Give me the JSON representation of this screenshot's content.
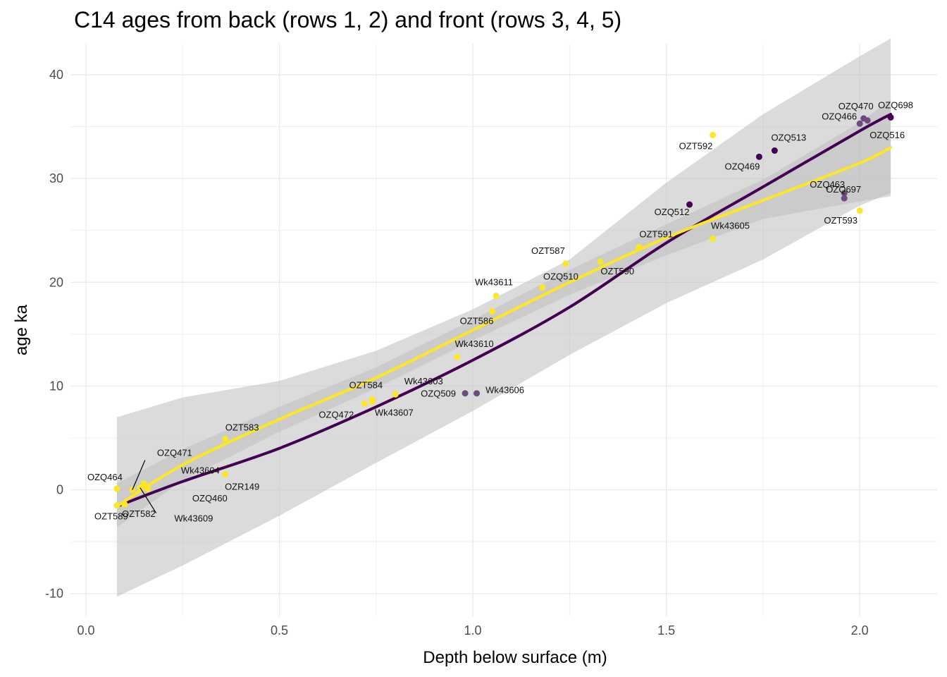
{
  "chart_data": {
    "type": "scatter",
    "title": "C14 ages from back (rows 1, 2) and front (rows 3, 4, 5)",
    "xlabel": "Depth below surface (m)",
    "ylabel": "age ka",
    "xlim": [
      -0.04,
      2.2
    ],
    "ylim": [
      -12.2,
      43
    ],
    "x_ticks": [
      0.0,
      0.5,
      1.0,
      1.5,
      2.0
    ],
    "x_tick_labels": [
      "0.0",
      "0.5",
      "1.0",
      "1.5",
      "2.0"
    ],
    "y_ticks": [
      -10,
      0,
      10,
      20,
      30,
      40
    ],
    "y_tick_labels": [
      "-10",
      "0",
      "10",
      "20",
      "30",
      "40"
    ],
    "grid": true,
    "legend": "none",
    "colors": {
      "row1": "#440154",
      "row2": "#5c3566",
      "row3": "#6f4a7f",
      "front": "#fde725",
      "ribbon": "#bdbdbd",
      "grid": "#ebebeb"
    },
    "points": [
      {
        "x": 0.08,
        "y": 0.1,
        "label": "OZQ464",
        "color": "front"
      },
      {
        "x": 0.12,
        "y": 0.0,
        "label": "OZQ471",
        "color": "front"
      },
      {
        "x": 0.1,
        "y": -1.4,
        "label": "OZT582",
        "color": "front"
      },
      {
        "x": 0.08,
        "y": -1.5,
        "label": "OZT589",
        "color": "front"
      },
      {
        "x": 0.15,
        "y": 0.6,
        "label": "Wk43604",
        "color": "front"
      },
      {
        "x": 0.16,
        "y": 0.1,
        "label": "OZQ460",
        "color": "front"
      },
      {
        "x": 0.14,
        "y": 0.2,
        "label": "Wk43609",
        "color": "front"
      },
      {
        "x": 0.36,
        "y": 1.5,
        "label": "OZR149",
        "color": "front"
      },
      {
        "x": 0.36,
        "y": 4.9,
        "label": "OZT583",
        "color": "front"
      },
      {
        "x": 0.72,
        "y": 8.3,
        "label": "OZQ472",
        "color": "front"
      },
      {
        "x": 0.74,
        "y": 8.7,
        "label": "OZT584",
        "color": "front"
      },
      {
        "x": 0.8,
        "y": 9.2,
        "label": "Wk43603",
        "color": "front"
      },
      {
        "x": 0.74,
        "y": 8.5,
        "label": "Wk43607",
        "color": "front"
      },
      {
        "x": 0.98,
        "y": 9.3,
        "label": "OZQ509",
        "color": "row3"
      },
      {
        "x": 1.01,
        "y": 9.3,
        "label": "Wk43606",
        "color": "row3"
      },
      {
        "x": 0.96,
        "y": 12.8,
        "label": "Wk43610",
        "color": "front"
      },
      {
        "x": 1.05,
        "y": 17.2,
        "label": "OZT586",
        "color": "front"
      },
      {
        "x": 1.06,
        "y": 18.7,
        "label": "Wk43611",
        "color": "front"
      },
      {
        "x": 1.18,
        "y": 19.5,
        "label": "OZQ510",
        "color": "front"
      },
      {
        "x": 1.24,
        "y": 21.8,
        "label": "OZT587",
        "color": "front"
      },
      {
        "x": 1.33,
        "y": 22.0,
        "label": "OZT590",
        "color": "front"
      },
      {
        "x": 1.43,
        "y": 23.4,
        "label": "OZT591",
        "color": "front"
      },
      {
        "x": 1.56,
        "y": 27.5,
        "label": "OZQ512",
        "color": "row1"
      },
      {
        "x": 1.62,
        "y": 24.2,
        "label": "Wk43605",
        "color": "front"
      },
      {
        "x": 1.62,
        "y": 34.2,
        "label": "OZT592",
        "color": "front"
      },
      {
        "x": 1.74,
        "y": 32.1,
        "label": "OZQ469",
        "color": "row1"
      },
      {
        "x": 1.78,
        "y": 32.7,
        "label": "OZQ513",
        "color": "row1"
      },
      {
        "x": 1.96,
        "y": 28.6,
        "label": "OZQ463",
        "color": "row3"
      },
      {
        "x": 1.96,
        "y": 28.1,
        "label": "OZQ697",
        "color": "row3"
      },
      {
        "x": 2.0,
        "y": 26.9,
        "label": "OZT593",
        "color": "front"
      },
      {
        "x": 2.0,
        "y": 35.3,
        "label": "OZQ466",
        "color": "row3"
      },
      {
        "x": 2.01,
        "y": 35.8,
        "label": "OZQ470",
        "color": "row3"
      },
      {
        "x": 2.02,
        "y": 35.6,
        "label": "OZQ516",
        "color": "row3"
      },
      {
        "x": 2.08,
        "y": 35.9,
        "label": "OZQ698",
        "color": "row1"
      }
    ],
    "series": [
      {
        "color": "row1",
        "x": [
          0.08,
          0.25,
          0.5,
          0.75,
          1.0,
          1.25,
          1.5,
          1.75,
          2.0,
          2.08
        ],
        "y": [
          -1.6,
          0.8,
          4.0,
          8.0,
          12.5,
          17.6,
          23.8,
          29.2,
          34.6,
          36.2
        ],
        "lower": [
          -10.3,
          -7.3,
          -2.5,
          2.6,
          7.6,
          13.0,
          18.0,
          22.2,
          27.4,
          28.6
        ],
        "upper": [
          7.0,
          8.9,
          10.5,
          13.4,
          17.4,
          22.2,
          29.6,
          36.2,
          41.8,
          43.5
        ]
      },
      {
        "color": "front",
        "x": [
          0.08,
          0.25,
          0.5,
          0.75,
          1.0,
          1.25,
          1.5,
          1.75,
          2.0,
          2.08
        ],
        "y": [
          -1.6,
          2.4,
          6.8,
          10.8,
          15.4,
          20.0,
          24.3,
          27.9,
          31.5,
          33.0
        ],
        "lower": [
          -3.6,
          0.9,
          5.6,
          9.8,
          14.4,
          18.8,
          22.6,
          26.1,
          27.8,
          28.3
        ],
        "upper": [
          0.6,
          3.9,
          8.0,
          11.8,
          16.4,
          21.2,
          25.6,
          29.9,
          35.4,
          37.6
        ]
      }
    ]
  }
}
